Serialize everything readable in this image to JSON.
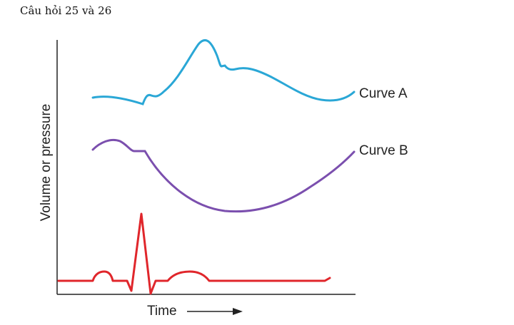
{
  "heading": "Câu hỏi 25 và 26",
  "figure": {
    "ylabel": "Volume or pressure",
    "xlabel": "Time",
    "curve_a": {
      "label": "Curve A",
      "color": "#2aa7d6"
    },
    "curve_b": {
      "label": "Curve B",
      "color": "#7b4fae"
    },
    "ecg": {
      "color": "#e0262b"
    }
  }
}
